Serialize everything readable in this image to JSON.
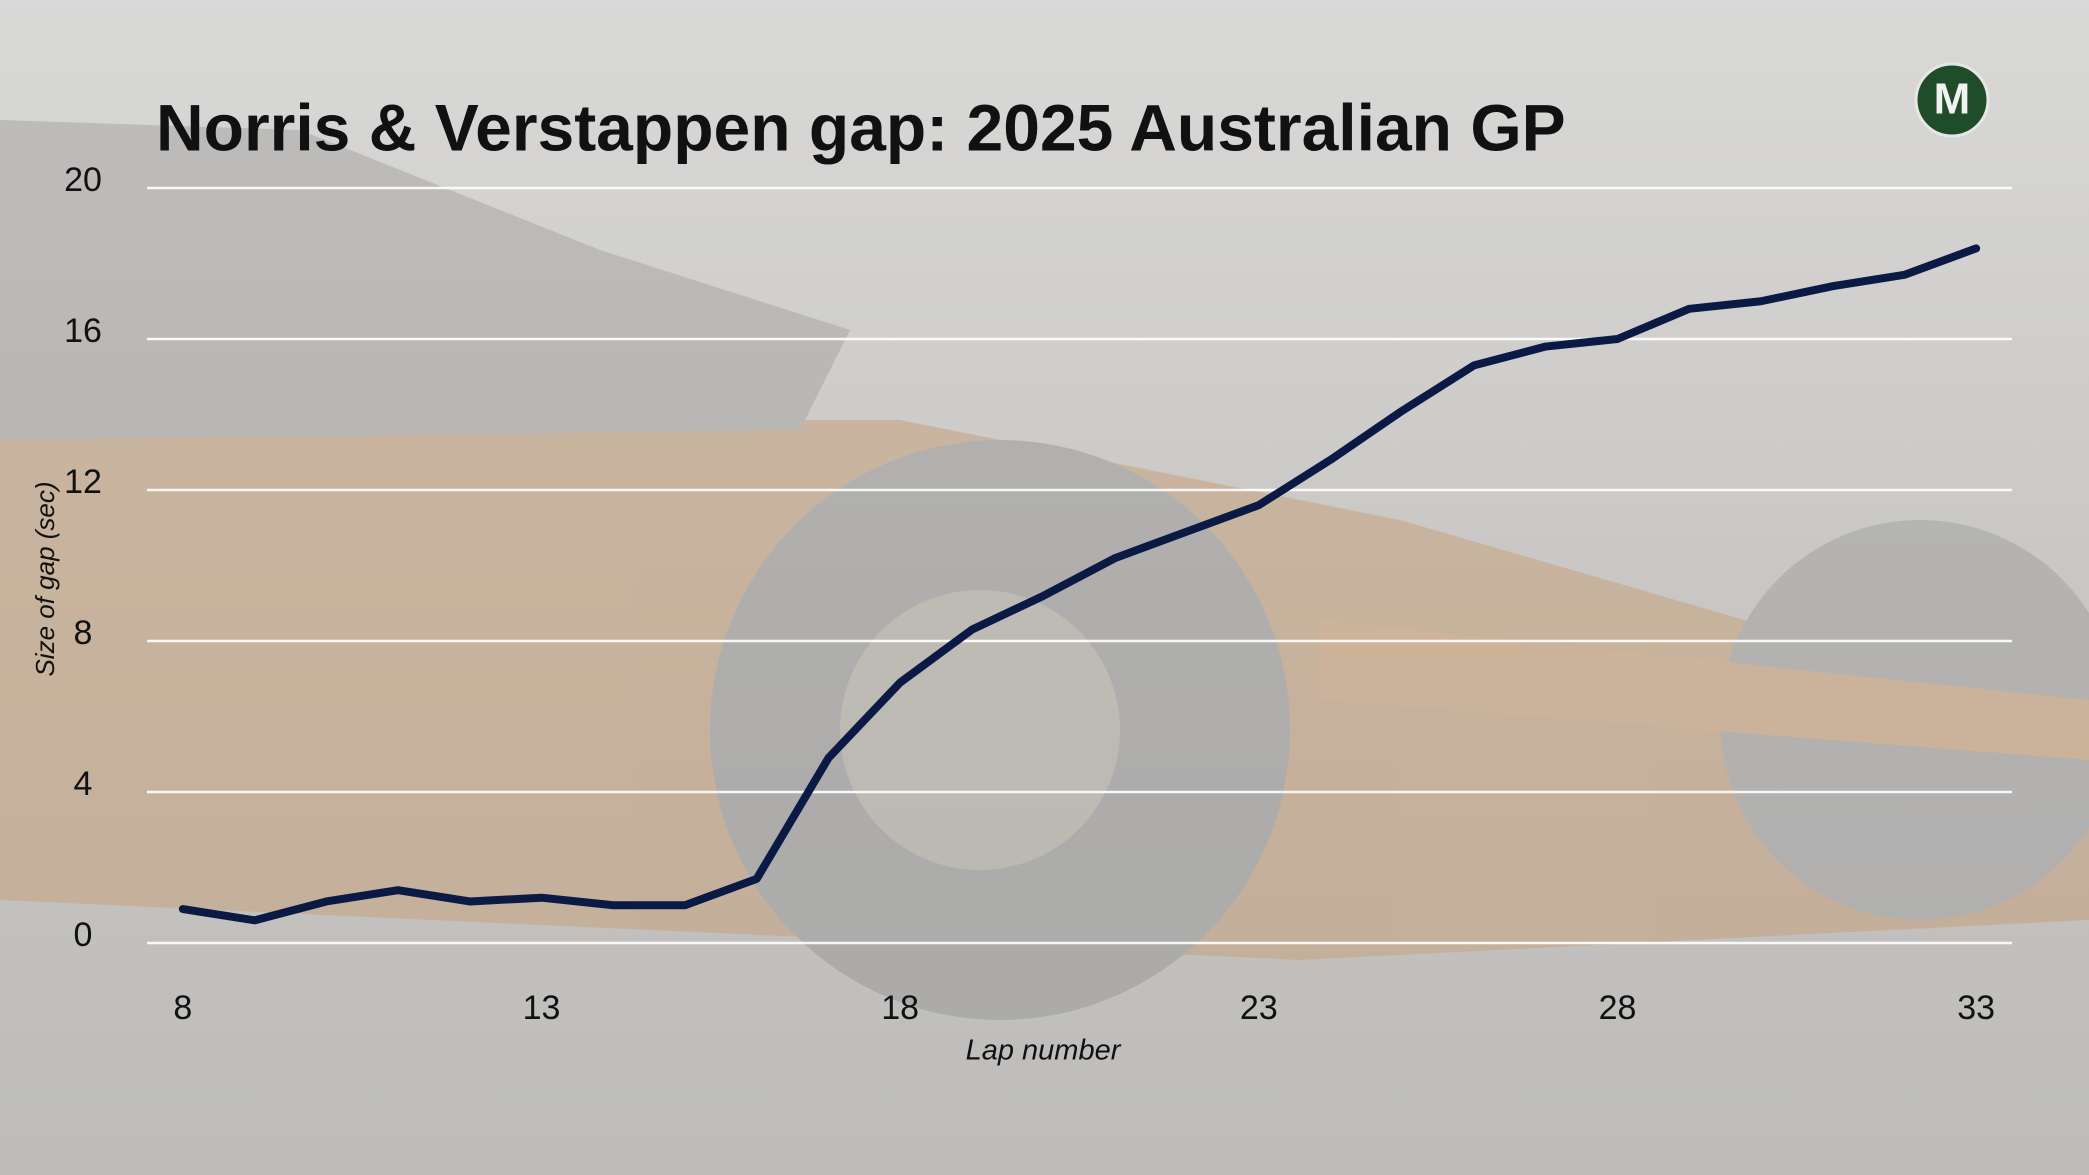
{
  "chart_data": {
    "type": "line",
    "title": "Norris & Verstappen gap: 2025 Australian GP",
    "x_label": "Lap number",
    "y_label": "Size of gap (sec)",
    "x": [
      8,
      9,
      10,
      11,
      12,
      13,
      14,
      15,
      16,
      17,
      18,
      19,
      20,
      21,
      22,
      23,
      24,
      25,
      26,
      27,
      28,
      29,
      30,
      31,
      32,
      33
    ],
    "series": [
      {
        "name": "Gap",
        "color": "#0b1a45",
        "values": [
          0.9,
          0.6,
          1.1,
          1.4,
          1.1,
          1.2,
          1.0,
          1.0,
          1.7,
          4.9,
          6.9,
          8.3,
          9.2,
          10.2,
          10.9,
          11.6,
          12.8,
          14.1,
          15.3,
          15.8,
          16.0,
          16.8,
          17.0,
          17.4,
          17.7,
          18.4
        ]
      }
    ],
    "xlim": [
      7.5,
      33.5
    ],
    "xticks": [
      8,
      13,
      18,
      23,
      28,
      33
    ],
    "ylim": [
      0,
      20
    ],
    "yticks": [
      0,
      4,
      8,
      12,
      16,
      20
    ],
    "grid": true
  },
  "logo": "M"
}
